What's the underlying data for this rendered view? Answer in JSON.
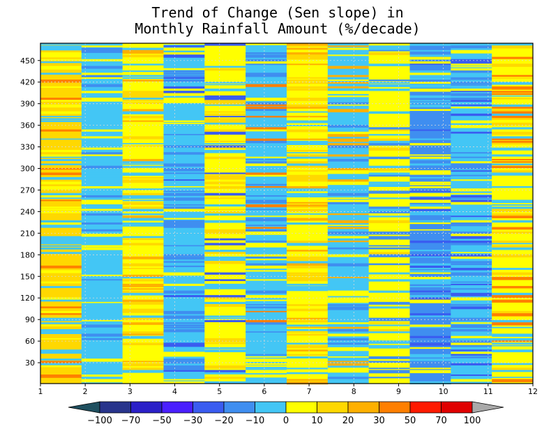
{
  "chart_data": {
    "type": "heatmap",
    "title_lines": [
      "Trend of Change (Sen slope) in",
      "Monthly Rainfall Amount (%/decade)"
    ],
    "xlabel": "",
    "ylabel": "",
    "x_ticks": [
      "1",
      "2",
      "3",
      "4",
      "5",
      "6",
      "7",
      "8",
      "9",
      "10",
      "11",
      "12"
    ],
    "y_ticks": [
      "30",
      "60",
      "90",
      "120",
      "150",
      "180",
      "210",
      "240",
      "270",
      "300",
      "330",
      "360",
      "390",
      "420",
      "450"
    ],
    "x_range": [
      1,
      12
    ],
    "y_range": [
      1,
      474
    ],
    "station_count": 474,
    "grid": true,
    "colorbar": {
      "placement": "bottom",
      "labels": [
        "−100",
        "−70",
        "−50",
        "−30",
        "−20",
        "−10",
        "0",
        "10",
        "20",
        "30",
        "50",
        "70",
        "100"
      ],
      "low_color": "#1f4f5f",
      "high_color": "#a9a9a9",
      "colors": [
        "#28348c",
        "#2b20c8",
        "#4a1fff",
        "#3a5cf0",
        "#3f8ef0",
        "#43c6f5",
        "#ffff00",
        "#ffd800",
        "#ffb000",
        "#ff7f00",
        "#ff1a00",
        "#e00000"
      ]
    },
    "columns": [
      {
        "month": 1,
        "dominant_class": "10 to 20",
        "mix": [
          "#ffd800",
          "#43c6f5",
          "#ffff00",
          "#ff7f00"
        ]
      },
      {
        "month": 2,
        "dominant_class": "-10 to 0",
        "mix": [
          "#43c6f5",
          "#43c6f5",
          "#ffff00",
          "#3f8ef0"
        ]
      },
      {
        "month": 3,
        "dominant_class": "0 to 10",
        "mix": [
          "#ffff00",
          "#ffd800",
          "#43c6f5",
          "#ffb000"
        ]
      },
      {
        "month": 4,
        "dominant_class": "-10 to 0",
        "mix": [
          "#43c6f5",
          "#3f8ef0",
          "#ffff00",
          "#3a5cf0"
        ]
      },
      {
        "month": 5,
        "dominant_class": "0 to 10",
        "mix": [
          "#ffff00",
          "#ffd800",
          "#43c6f5",
          "#3a5cf0"
        ]
      },
      {
        "month": 6,
        "dominant_class": "-10 to 0",
        "mix": [
          "#43c6f5",
          "#3f8ef0",
          "#ffff00",
          "#ff7f00"
        ]
      },
      {
        "month": 7,
        "dominant_class": "0 to 10",
        "mix": [
          "#ffff00",
          "#ffd800",
          "#43c6f5",
          "#ffb000"
        ]
      },
      {
        "month": 8,
        "dominant_class": "-10 to 0",
        "mix": [
          "#43c6f5",
          "#ffff00",
          "#ffb000",
          "#3f8ef0"
        ]
      },
      {
        "month": 9,
        "dominant_class": "0 to 10",
        "mix": [
          "#ffff00",
          "#43c6f5",
          "#3f8ef0",
          "#ffd800"
        ]
      },
      {
        "month": 10,
        "dominant_class": "-20 to -10",
        "mix": [
          "#3f8ef0",
          "#43c6f5",
          "#ffff00",
          "#3a5cf0"
        ]
      },
      {
        "month": 11,
        "dominant_class": "-10 to 0",
        "mix": [
          "#43c6f5",
          "#ffff00",
          "#3f8ef0",
          "#3a5cf0"
        ]
      },
      {
        "month": 12,
        "dominant_class": "0 to 10",
        "mix": [
          "#ffff00",
          "#43c6f5",
          "#ffd800",
          "#ff7f00"
        ]
      }
    ]
  }
}
